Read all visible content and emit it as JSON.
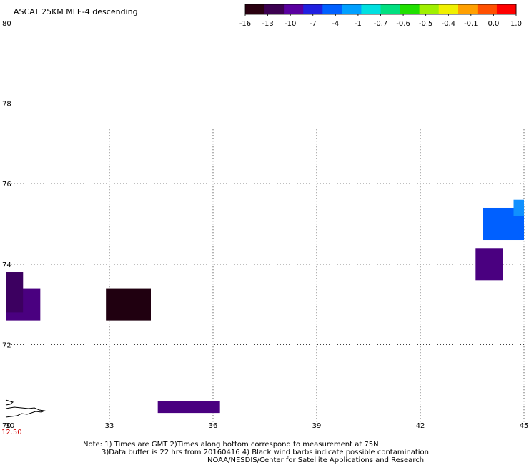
{
  "title": "ASCAT 25KM MLE-4 descending",
  "colorbar": {
    "colors": [
      "#2a0010",
      "#3c0050",
      "#5a00a0",
      "#2020e0",
      "#0060ff",
      "#00a0ff",
      "#00e0e0",
      "#00e080",
      "#20e000",
      "#a0f000",
      "#f0f000",
      "#ffa000",
      "#ff5000",
      "#ff0000"
    ],
    "tick_labels": [
      "-16",
      "-13",
      "-10",
      "-7",
      "-4",
      "-1",
      "-0.7",
      "-0.6",
      "-0.5",
      "-0.4",
      "-0.1",
      "0.0",
      "1.0"
    ]
  },
  "map": {
    "lat_labels": [
      "80",
      "78",
      "76",
      "74",
      "72",
      "70"
    ],
    "lon_labels": [
      "30",
      "33",
      "36",
      "39",
      "42",
      "45"
    ],
    "time_label": "12.50"
  },
  "chart_data": {
    "type": "heatmap",
    "lon_range": [
      30,
      45
    ],
    "lat_range": [
      70,
      80
    ],
    "cells": [
      {
        "lon": [
          30.0,
          31.0
        ],
        "lat": [
          72.6,
          73.4
        ],
        "color": "#4a0080"
      },
      {
        "lon": [
          30.0,
          30.5
        ],
        "lat": [
          73.4,
          73.8
        ],
        "color": "#4a0080"
      },
      {
        "lon": [
          30.0,
          30.5
        ],
        "lat": [
          72.8,
          73.8
        ],
        "color": "#3c0060"
      },
      {
        "lon": [
          32.9,
          34.2
        ],
        "lat": [
          72.6,
          73.4
        ],
        "color": "#200010"
      },
      {
        "lon": [
          34.4,
          36.2
        ],
        "lat": [
          70.3,
          70.6
        ],
        "color": "#4a0080"
      },
      {
        "lon": [
          43.6,
          44.4
        ],
        "lat": [
          73.6,
          74.4
        ],
        "color": "#4a0080"
      },
      {
        "lon": [
          43.8,
          45.0
        ],
        "lat": [
          74.6,
          75.4
        ],
        "color": "#0060ff"
      },
      {
        "lon": [
          44.7,
          45.0
        ],
        "lat": [
          75.2,
          75.6
        ],
        "color": "#1090ff"
      }
    ]
  },
  "notes": {
    "line1": "Note: 1) Times are GMT 2)Times along bottom correspond to measurement at 75N",
    "line2": "3)Data buffer is 22 hrs from 20160416 4) Black wind barbs indicate possible contamination",
    "line3": "NOAA/NESDIS/Center for Satellite Applications and Research"
  }
}
